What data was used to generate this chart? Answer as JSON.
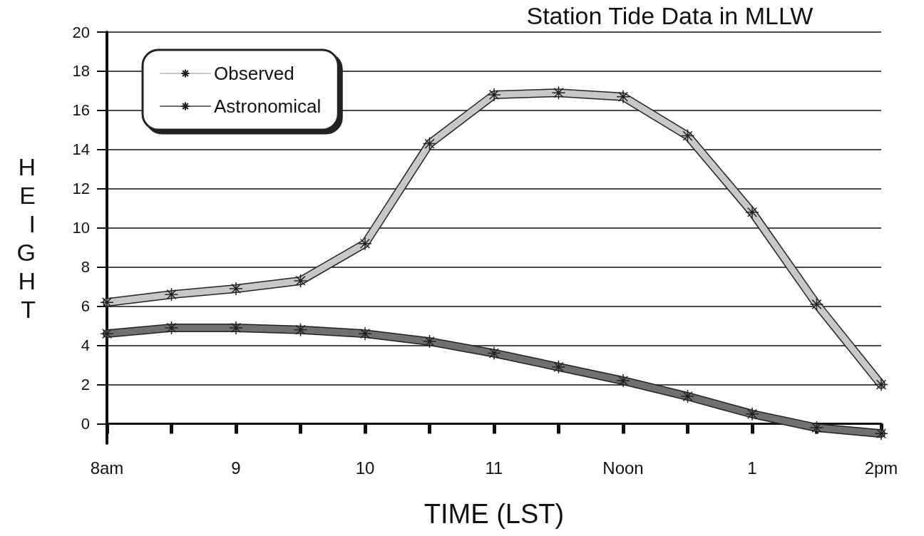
{
  "chart_data": {
    "type": "line",
    "title": "Station Tide Data in MLLW",
    "xlabel": "TIME (LST)",
    "ylabel": "HEIGHT",
    "categories": [
      "8am",
      null,
      "9",
      null,
      "10",
      null,
      "11",
      null,
      "Noon",
      null,
      "1",
      null,
      "2pm"
    ],
    "series": [
      {
        "name": "Observed",
        "color": "#c8c8c8",
        "values": [
          6.2,
          6.6,
          6.9,
          7.3,
          9.2,
          14.3,
          16.8,
          16.9,
          16.7,
          14.7,
          10.8,
          6.1,
          2.0
        ]
      },
      {
        "name": "Astronomical",
        "color": "#707070",
        "values": [
          4.6,
          4.9,
          4.9,
          4.8,
          4.6,
          4.2,
          3.6,
          2.9,
          2.2,
          1.4,
          0.5,
          -0.2,
          -0.5
        ]
      }
    ],
    "ylim": [
      -1,
      20
    ],
    "yticks": [
      0,
      2,
      4,
      6,
      8,
      10,
      12,
      14,
      16,
      18,
      20
    ],
    "grid": "y",
    "legend": "top left",
    "marker": "cross",
    "line_style": "solid"
  }
}
